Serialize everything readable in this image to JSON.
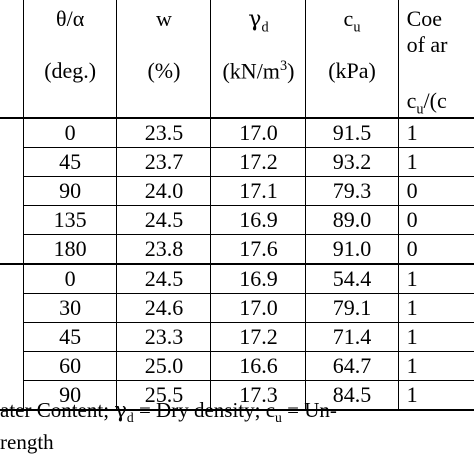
{
  "header": {
    "col1": {
      "line1": "θ/α",
      "line2": "(deg.)"
    },
    "col2": {
      "line1": "w",
      "line2": "(%)"
    },
    "col3": {
      "line1_symbol": "γ",
      "line1_sub": "d",
      "line2_pre": "(kN/m",
      "line2_sup": "3",
      "line2_post": ")"
    },
    "col4": {
      "line1_pre": "c",
      "line1_sub": "u",
      "line2": "(kPa)"
    },
    "col5": {
      "line1": "Coe",
      "line2": "of ar",
      "line3_pre": "c",
      "line3_sub": "u",
      "line3_post": "/(c"
    }
  },
  "groups": [
    {
      "rows": [
        {
          "angle": "0",
          "w": "23.5",
          "gd": "17.0",
          "cu": "91.5",
          "last": "1"
        },
        {
          "angle": "45",
          "w": "23.7",
          "gd": "17.2",
          "cu": "93.2",
          "last": "1"
        },
        {
          "angle": "90",
          "w": "24.0",
          "gd": "17.1",
          "cu": "79.3",
          "last": "0"
        },
        {
          "angle": "135",
          "w": "24.5",
          "gd": "16.9",
          "cu": "89.0",
          "last": "0"
        },
        {
          "angle": "180",
          "w": "23.8",
          "gd": "17.6",
          "cu": "91.0",
          "last": "0"
        }
      ]
    },
    {
      "rows": [
        {
          "angle": "0",
          "w": "24.5",
          "gd": "16.9",
          "cu": "54.4",
          "last": "1"
        },
        {
          "angle": "30",
          "w": "24.6",
          "gd": "17.0",
          "cu": "79.1",
          "last": "1"
        },
        {
          "angle": "45",
          "w": "23.3",
          "gd": "17.2",
          "cu": "71.4",
          "last": "1"
        },
        {
          "angle": "60",
          "w": "25.0",
          "gd": "16.6",
          "cu": "64.7",
          "last": "1"
        },
        {
          "angle": "90",
          "w": "25.5",
          "gd": "17.3",
          "cu": "84.5",
          "last": "1"
        }
      ]
    }
  ],
  "footnote": {
    "line1_pre": "ater Content; ",
    "line1_gamma": "γ",
    "line1_gamma_sub": "d",
    "line1_mid": " = Dry density; c",
    "line1_c_sub": "u",
    "line1_post": " = Un-",
    "line2": "rength"
  }
}
